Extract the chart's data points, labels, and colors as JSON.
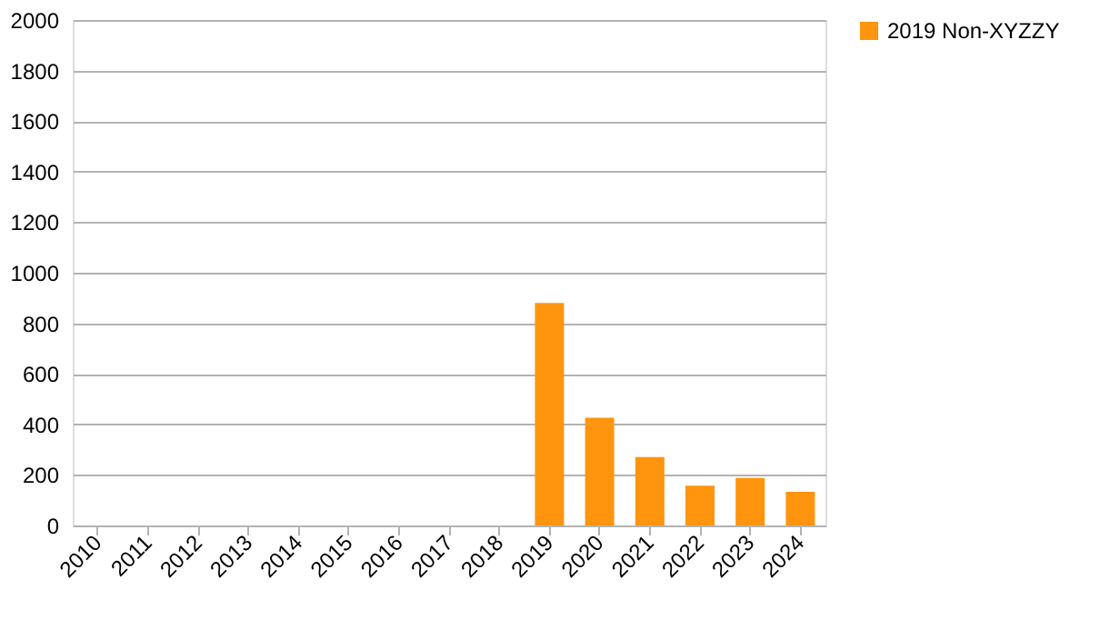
{
  "chart_data": {
    "type": "bar",
    "categories": [
      "2010",
      "2011",
      "2012",
      "2013",
      "2014",
      "2015",
      "2016",
      "2017",
      "2018",
      "2019",
      "2020",
      "2021",
      "2022",
      "2023",
      "2024"
    ],
    "series": [
      {
        "name": "2019 Non-XYZZY",
        "color": "#ff950e",
        "values": [
          null,
          null,
          null,
          null,
          null,
          null,
          null,
          null,
          null,
          880,
          426,
          271,
          157,
          188,
          133
        ]
      }
    ],
    "ylim": [
      0,
      2000
    ],
    "yticks": [
      0,
      200,
      400,
      600,
      800,
      1000,
      1200,
      1400,
      1600,
      1800,
      2000
    ],
    "grid": "y",
    "legend": "right"
  }
}
